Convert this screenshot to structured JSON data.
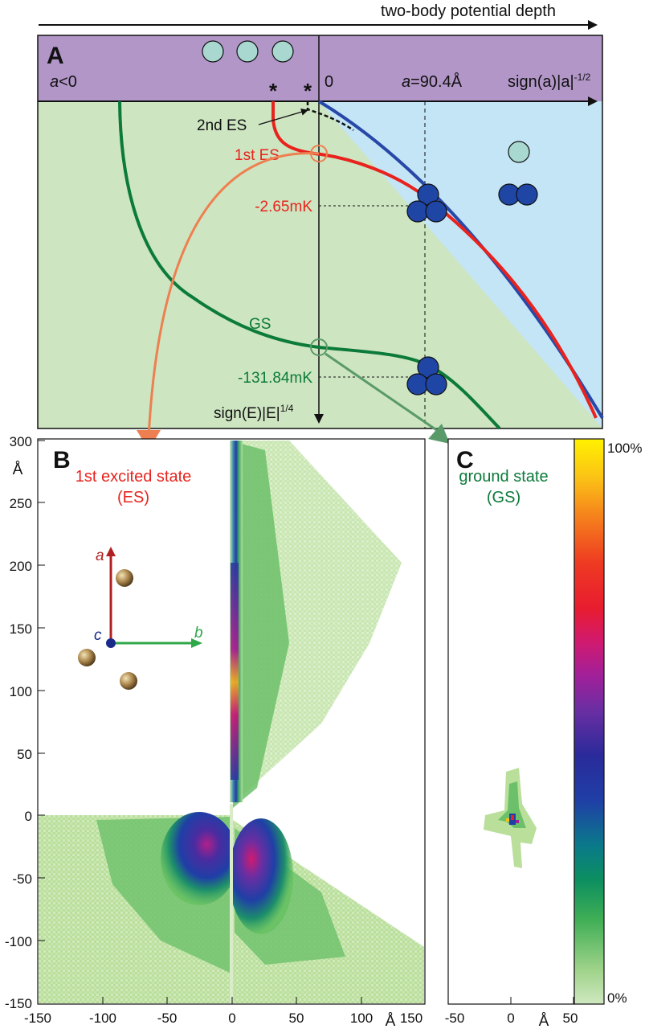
{
  "header": {
    "title": "two-body potential depth"
  },
  "panel_a": {
    "letter": "A",
    "a_negative_label_prefix": "a",
    "a_negative_label_suffix": "<0",
    "zero_label": "0",
    "a_value_prefix": "a",
    "a_value_suffix": "=90.4Å",
    "x_axis_label_main": "sign(a)|a|",
    "x_axis_label_sup": "-1/2",
    "y_axis_label_main": "sign(E)|E|",
    "y_axis_label_sup": "1/4",
    "asterisk": "*",
    "second_es_label": "2nd ES",
    "first_es_label": "1st ES",
    "first_es_energy": "-2.65mK",
    "gs_label": "GS",
    "gs_energy": "-131.84mK",
    "colors": {
      "purple_band": "#b296c8",
      "green_region": "#cde5c1",
      "blue_region": "#c4e5f5",
      "first_es": "#e8231d",
      "gs": "#0b7a3a",
      "threshold": "#2848a8",
      "atom_light": "#a8d8d0",
      "atom_dark": "#1f45a5"
    }
  },
  "panel_b": {
    "letter": "B",
    "title_line1": "1st excited state",
    "title_line2": "(ES)",
    "y_unit": "Å",
    "x_unit": "Å",
    "y_ticks": [
      "300",
      "250",
      "200",
      "150",
      "100",
      "50",
      "0",
      "-50",
      "-100",
      "-150"
    ],
    "x_ticks": [
      "-150",
      "-100",
      "-50",
      "0",
      "50",
      "100",
      "150"
    ],
    "axes_inset": {
      "a": "a",
      "b": "b",
      "c": "c"
    }
  },
  "panel_c": {
    "letter": "C",
    "title_line1": "ground state",
    "title_line2": "(GS)",
    "x_unit": "Å",
    "x_ticks": [
      "-50",
      "0",
      "50"
    ]
  },
  "colorbar": {
    "top_label": "100%",
    "bottom_label": "0%"
  }
}
